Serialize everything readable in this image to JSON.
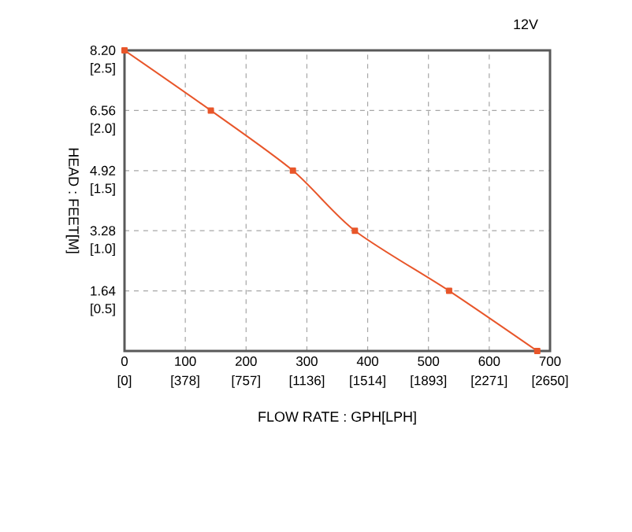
{
  "chart_data": {
    "type": "line",
    "title": "12V",
    "xlabel": "FLOW RATE : GPH[LPH]",
    "ylabel": "HEAD : FEET[M]",
    "x": [
      0,
      142,
      277,
      379,
      534,
      679
    ],
    "series": [
      {
        "color": "#e8562a",
        "values": [
          8.2,
          6.56,
          4.92,
          3.28,
          1.64,
          0
        ]
      }
    ],
    "xlim": [
      0,
      700
    ],
    "ylim": [
      0,
      8.2
    ],
    "xticks": [
      0,
      100,
      200,
      300,
      400,
      500,
      600,
      700
    ],
    "yticks": [
      {
        "value": 1.64,
        "label": "1.64"
      },
      {
        "value": 3.28,
        "label": "3.28"
      },
      {
        "value": 4.92,
        "label": "4.92"
      },
      {
        "value": 6.56,
        "label": "6.56"
      },
      {
        "value": 8.2,
        "label": "8.20"
      }
    ],
    "x2lim": [
      0,
      2650
    ],
    "x2ticks": [
      {
        "value": 0,
        "label": "[0]"
      },
      {
        "value": 378,
        "label": "[378]"
      },
      {
        "value": 757,
        "label": "[757]"
      },
      {
        "value": 1136,
        "label": "[1136]"
      },
      {
        "value": 1514,
        "label": "[1514]"
      },
      {
        "value": 1893,
        "label": "[1893]"
      },
      {
        "value": 2271,
        "label": "[2271]"
      },
      {
        "value": 2650,
        "label": "[2650]"
      }
    ],
    "y2lim": [
      0.157,
      2.657
    ],
    "y2ticks": [
      {
        "value": 0.5,
        "label": "[0.5]"
      },
      {
        "value": 1.0,
        "label": "[1.0]"
      },
      {
        "value": 1.5,
        "label": "[1.5]"
      },
      {
        "value": 2.0,
        "label": "[2.0]"
      },
      {
        "value": 2.5,
        "label": "[2.5]"
      }
    ],
    "grid": true,
    "marker": "square",
    "line_style": "solid"
  }
}
